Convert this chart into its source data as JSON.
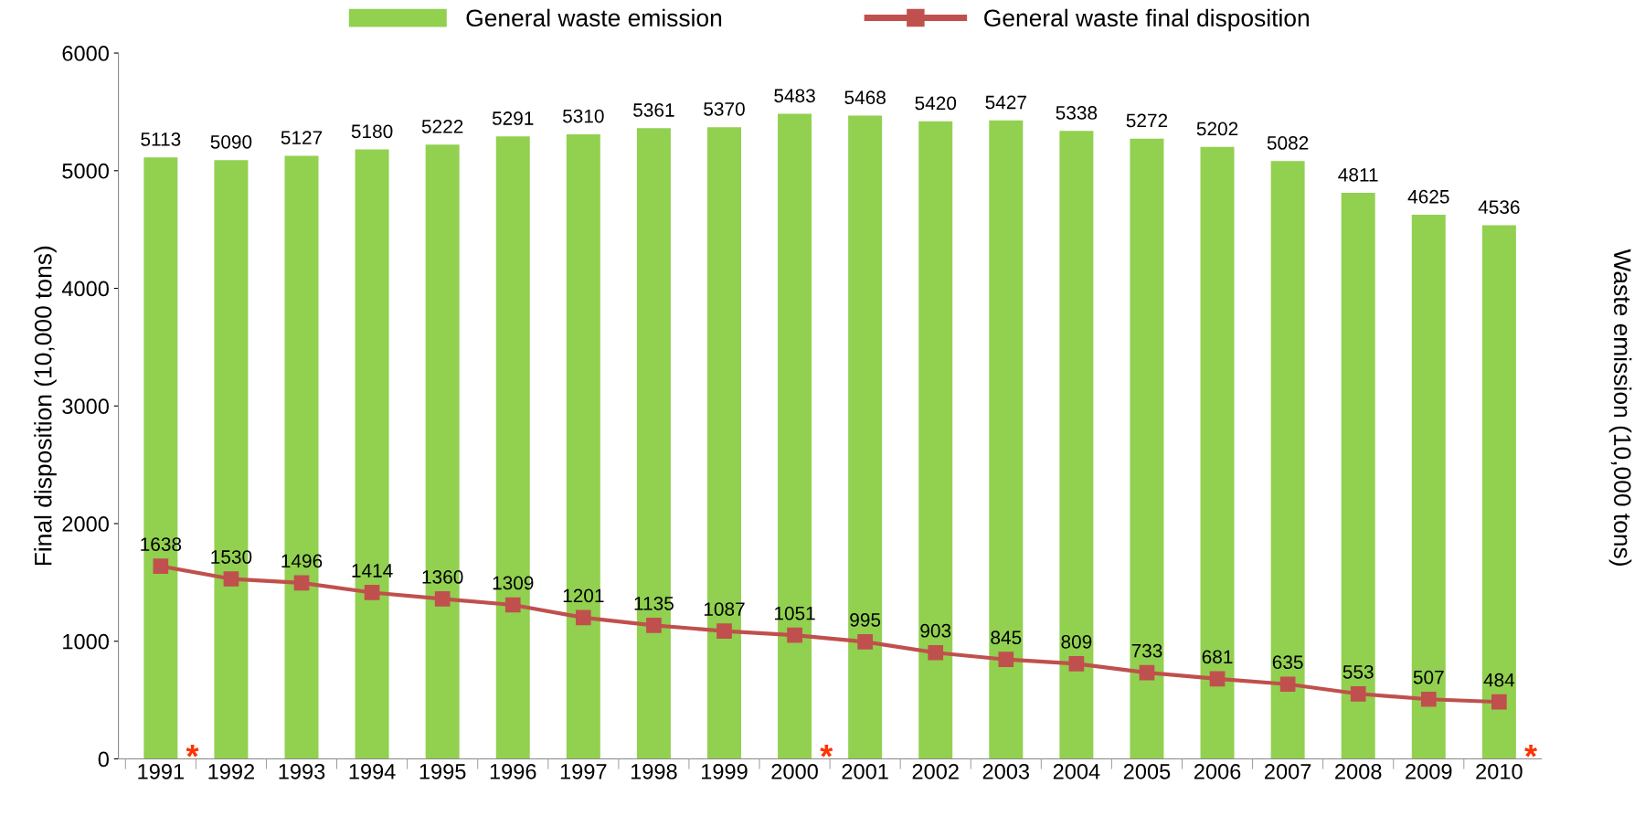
{
  "chart_data": {
    "type": "bar",
    "xlabel": null,
    "ylabel": "Final disposition (10,000 tons)",
    "y2label": "Waste emission (10,000 tons)",
    "categories": [
      "1991",
      "1992",
      "1993",
      "1994",
      "1995",
      "1996",
      "1997",
      "1998",
      "1999",
      "2000",
      "2001",
      "2002",
      "2003",
      "2004",
      "2005",
      "2006",
      "2007",
      "2008",
      "2009",
      "2010"
    ],
    "series": [
      {
        "name": "General waste emission",
        "color": "#92d050",
        "values": [
          5113,
          5090,
          5127,
          5180,
          5222,
          5291,
          5310,
          5361,
          5370,
          5483,
          5468,
          5420,
          5427,
          5338,
          5272,
          5202,
          5082,
          4811,
          4625,
          4536
        ]
      },
      {
        "name": "General waste final disposition",
        "type": "line",
        "color": "#c0504d",
        "marker": "square",
        "values": [
          1638,
          1530,
          1496,
          1414,
          1360,
          1309,
          1201,
          1135,
          1087,
          1051,
          995,
          903,
          845,
          809,
          733,
          681,
          635,
          553,
          507,
          484
        ]
      }
    ],
    "ylim": [
      0,
      6000
    ],
    "yticks": [
      0,
      1000,
      2000,
      3000,
      4000,
      5000,
      6000
    ],
    "grid": false,
    "legend": "top",
    "data_labels": true,
    "annotations": [
      {
        "text": "*",
        "x": "1991",
        "y": 0
      },
      {
        "text": "*",
        "x": "2000",
        "y": 0
      },
      {
        "text": "*",
        "x": "2010",
        "y": 0
      }
    ]
  }
}
